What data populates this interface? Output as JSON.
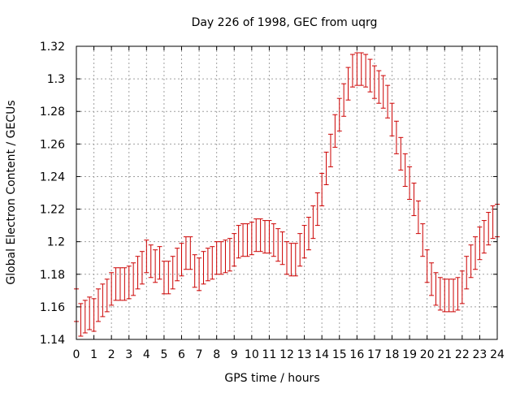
{
  "chart_data": {
    "type": "scatter",
    "title": "Day 226 of 1998, GEC from uqrg",
    "xlabel": "GPS time / hours",
    "ylabel": "Global Electron Content / GECUs",
    "xlim": [
      0,
      24
    ],
    "ylim": [
      1.14,
      1.32
    ],
    "xticks": [
      0,
      1,
      2,
      3,
      4,
      5,
      6,
      7,
      8,
      9,
      10,
      11,
      12,
      13,
      14,
      15,
      16,
      17,
      18,
      19,
      20,
      21,
      22,
      23,
      24
    ],
    "xtick_labels": [
      "0",
      "1",
      "2",
      "3",
      "4",
      "5",
      "6",
      "7",
      "8",
      "9",
      "10",
      "11",
      "12",
      "13",
      "14",
      "15",
      "16",
      "17",
      "18",
      "19",
      "20",
      "21",
      "22",
      "23",
      "24"
    ],
    "yticks": [
      1.14,
      1.16,
      1.18,
      1.2,
      1.22,
      1.24,
      1.26,
      1.28,
      1.3,
      1.32
    ],
    "ytick_labels": [
      "1.14",
      "1.16",
      "1.18",
      "1.2",
      "1.22",
      "1.24",
      "1.26",
      "1.28",
      "1.3",
      "1.32"
    ],
    "grid": true,
    "series_color": "#cc0000",
    "grid_color": "#a0a0a0",
    "series": [
      {
        "name": "GEC",
        "error": 0.01,
        "x": [
          0,
          0.25,
          0.5,
          0.75,
          1,
          1.25,
          1.5,
          1.75,
          2,
          2.25,
          2.5,
          2.75,
          3,
          3.25,
          3.5,
          3.75,
          4,
          4.25,
          4.5,
          4.75,
          5,
          5.25,
          5.5,
          5.75,
          6,
          6.25,
          6.5,
          6.75,
          7,
          7.25,
          7.5,
          7.75,
          8,
          8.25,
          8.5,
          8.75,
          9,
          9.25,
          9.5,
          9.75,
          10,
          10.25,
          10.5,
          10.75,
          11,
          11.25,
          11.5,
          11.75,
          12,
          12.25,
          12.5,
          12.75,
          13,
          13.25,
          13.5,
          13.75,
          14,
          14.25,
          14.5,
          14.75,
          15,
          15.25,
          15.5,
          15.75,
          16,
          16.25,
          16.5,
          16.75,
          17,
          17.25,
          17.5,
          17.75,
          18,
          18.25,
          18.5,
          18.75,
          19,
          19.25,
          19.5,
          19.75,
          20,
          20.25,
          20.5,
          20.75,
          21,
          21.25,
          21.5,
          21.75,
          22,
          22.25,
          22.5,
          22.75,
          23,
          23.25,
          23.5,
          23.75,
          24
        ],
        "y": [
          1.161,
          1.152,
          1.154,
          1.156,
          1.155,
          1.161,
          1.164,
          1.167,
          1.171,
          1.174,
          1.174,
          1.174,
          1.175,
          1.177,
          1.181,
          1.184,
          1.191,
          1.188,
          1.185,
          1.187,
          1.178,
          1.178,
          1.181,
          1.186,
          1.189,
          1.193,
          1.193,
          1.182,
          1.18,
          1.184,
          1.186,
          1.187,
          1.19,
          1.19,
          1.191,
          1.192,
          1.195,
          1.2,
          1.201,
          1.201,
          1.202,
          1.204,
          1.204,
          1.203,
          1.203,
          1.201,
          1.198,
          1.196,
          1.19,
          1.189,
          1.189,
          1.195,
          1.2,
          1.205,
          1.212,
          1.22,
          1.232,
          1.245,
          1.256,
          1.268,
          1.278,
          1.287,
          1.297,
          1.305,
          1.306,
          1.306,
          1.305,
          1.302,
          1.298,
          1.295,
          1.292,
          1.286,
          1.275,
          1.264,
          1.254,
          1.244,
          1.236,
          1.226,
          1.215,
          1.201,
          1.185,
          1.177,
          1.171,
          1.168,
          1.167,
          1.167,
          1.167,
          1.168,
          1.172,
          1.181,
          1.188,
          1.193,
          1.199,
          1.203,
          1.208,
          1.212,
          1.213
        ]
      }
    ]
  }
}
